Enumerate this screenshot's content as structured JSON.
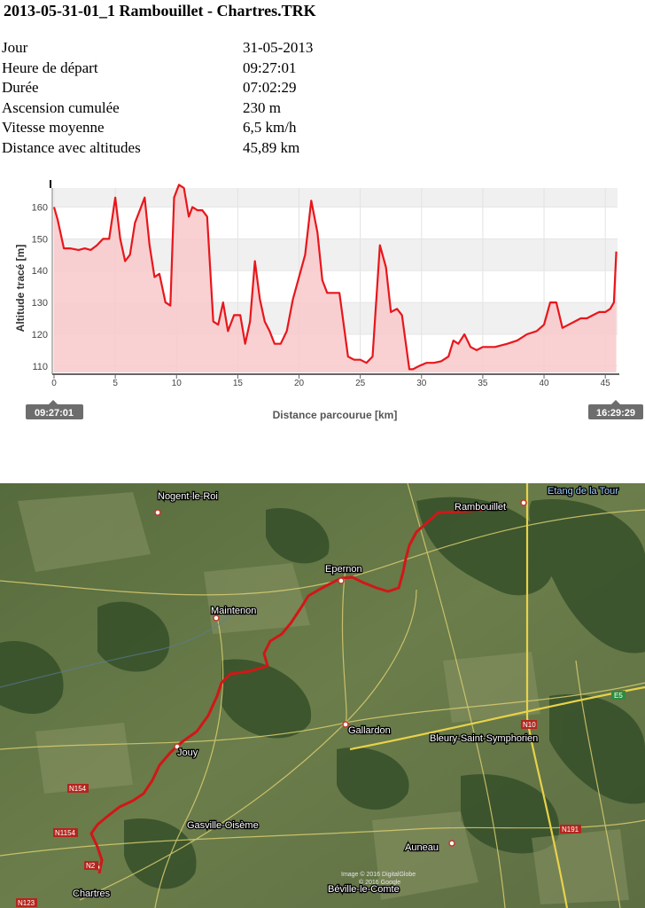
{
  "title": "2013-05-31-01_1 Rambouillet - Chartres.TRK",
  "stats": [
    {
      "label": "Jour",
      "value": "31-05-2013"
    },
    {
      "label": "Heure de départ",
      "value": "09:27:01"
    },
    {
      "label": "Durée",
      "value": "07:02:29"
    },
    {
      "label": "Ascension cumulée",
      "value": "230 m"
    },
    {
      "label": "Vitesse moyenne",
      "value": "6,5 km/h"
    },
    {
      "label": "Distance avec altitudes",
      "value": "45,89 km"
    }
  ],
  "chart_data": {
    "type": "area",
    "xlabel": "Distance parcourue [km]",
    "ylabel": "Altitude tracé [m]",
    "xlim": [
      0,
      46
    ],
    "ylim": [
      108,
      166
    ],
    "xticks": [
      0,
      5,
      10,
      15,
      20,
      25,
      30,
      35,
      40,
      45
    ],
    "yticks": [
      110,
      120,
      130,
      140,
      150,
      160
    ],
    "start_time": "09:27:01",
    "end_time": "16:29:29",
    "color": "#e8161b",
    "fill": "#f9c9cb",
    "x": [
      0,
      0.3,
      0.8,
      1.3,
      2,
      2.5,
      3,
      3.5,
      4,
      4.5,
      5,
      5.4,
      5.8,
      6.2,
      6.6,
      7,
      7.4,
      7.8,
      8.2,
      8.6,
      9.1,
      9.5,
      9.8,
      10.2,
      10.6,
      11,
      11.3,
      11.7,
      12.1,
      12.5,
      13,
      13.4,
      13.8,
      14.2,
      14.7,
      15.2,
      15.6,
      16,
      16.4,
      16.8,
      17.2,
      17.6,
      18,
      18.5,
      19,
      19.5,
      20,
      20.5,
      21,
      21.5,
      21.9,
      22.3,
      22.8,
      23.3,
      24,
      24.5,
      25,
      25.5,
      26,
      26.6,
      27.1,
      27.5,
      28,
      28.4,
      29,
      29.3,
      29.8,
      30.4,
      31,
      31.6,
      32.2,
      32.6,
      33,
      33.5,
      34,
      34.5,
      35,
      36,
      37,
      37.8,
      38.6,
      39.4,
      40,
      40.5,
      41,
      41.5,
      42,
      42.5,
      43,
      43.5,
      44,
      44.5,
      45,
      45.4,
      45.7,
      45.9
    ],
    "y": [
      160,
      156,
      147,
      147,
      146.5,
      147,
      146.5,
      148,
      150,
      150,
      163,
      150,
      143,
      145,
      155,
      159,
      163,
      148,
      138,
      139,
      130,
      129,
      163,
      167,
      166,
      157,
      160,
      159,
      159,
      157,
      124,
      123,
      130,
      121,
      126,
      126,
      117,
      124,
      143,
      131,
      124,
      121,
      117,
      117,
      121,
      131,
      138,
      145,
      162,
      152,
      137,
      133,
      133,
      133,
      113,
      112,
      112,
      111,
      113,
      148,
      141,
      127,
      128,
      126,
      109,
      109,
      110,
      111,
      111,
      111.5,
      113,
      118,
      117,
      120,
      116,
      115,
      116,
      116,
      117,
      118,
      120,
      121,
      123,
      130,
      130,
      122,
      123,
      124,
      125,
      125,
      126,
      127,
      127,
      128,
      130,
      146
    ]
  },
  "map": {
    "places": [
      {
        "name": "Nogent-le-Roi"
      },
      {
        "name": "Rambouillet"
      },
      {
        "name": "Etang de la Tour"
      },
      {
        "name": "Epernon"
      },
      {
        "name": "Maintenon"
      },
      {
        "name": "Gallardon"
      },
      {
        "name": "Bleury-Saint-Symphorien"
      },
      {
        "name": "Jouy"
      },
      {
        "name": "Gasville-Oisème"
      },
      {
        "name": "Auneau"
      },
      {
        "name": "Chartres"
      },
      {
        "name": "Béville-le-Comte"
      }
    ],
    "roads": [
      {
        "name": "N10"
      },
      {
        "name": "E5"
      },
      {
        "name": "N154"
      },
      {
        "name": "N1154"
      },
      {
        "name": "N191"
      },
      {
        "name": "N123"
      },
      {
        "name": "N2"
      }
    ],
    "credits": [
      "Image © 2016 DigitalGlobe",
      "© 2016 Google"
    ]
  }
}
